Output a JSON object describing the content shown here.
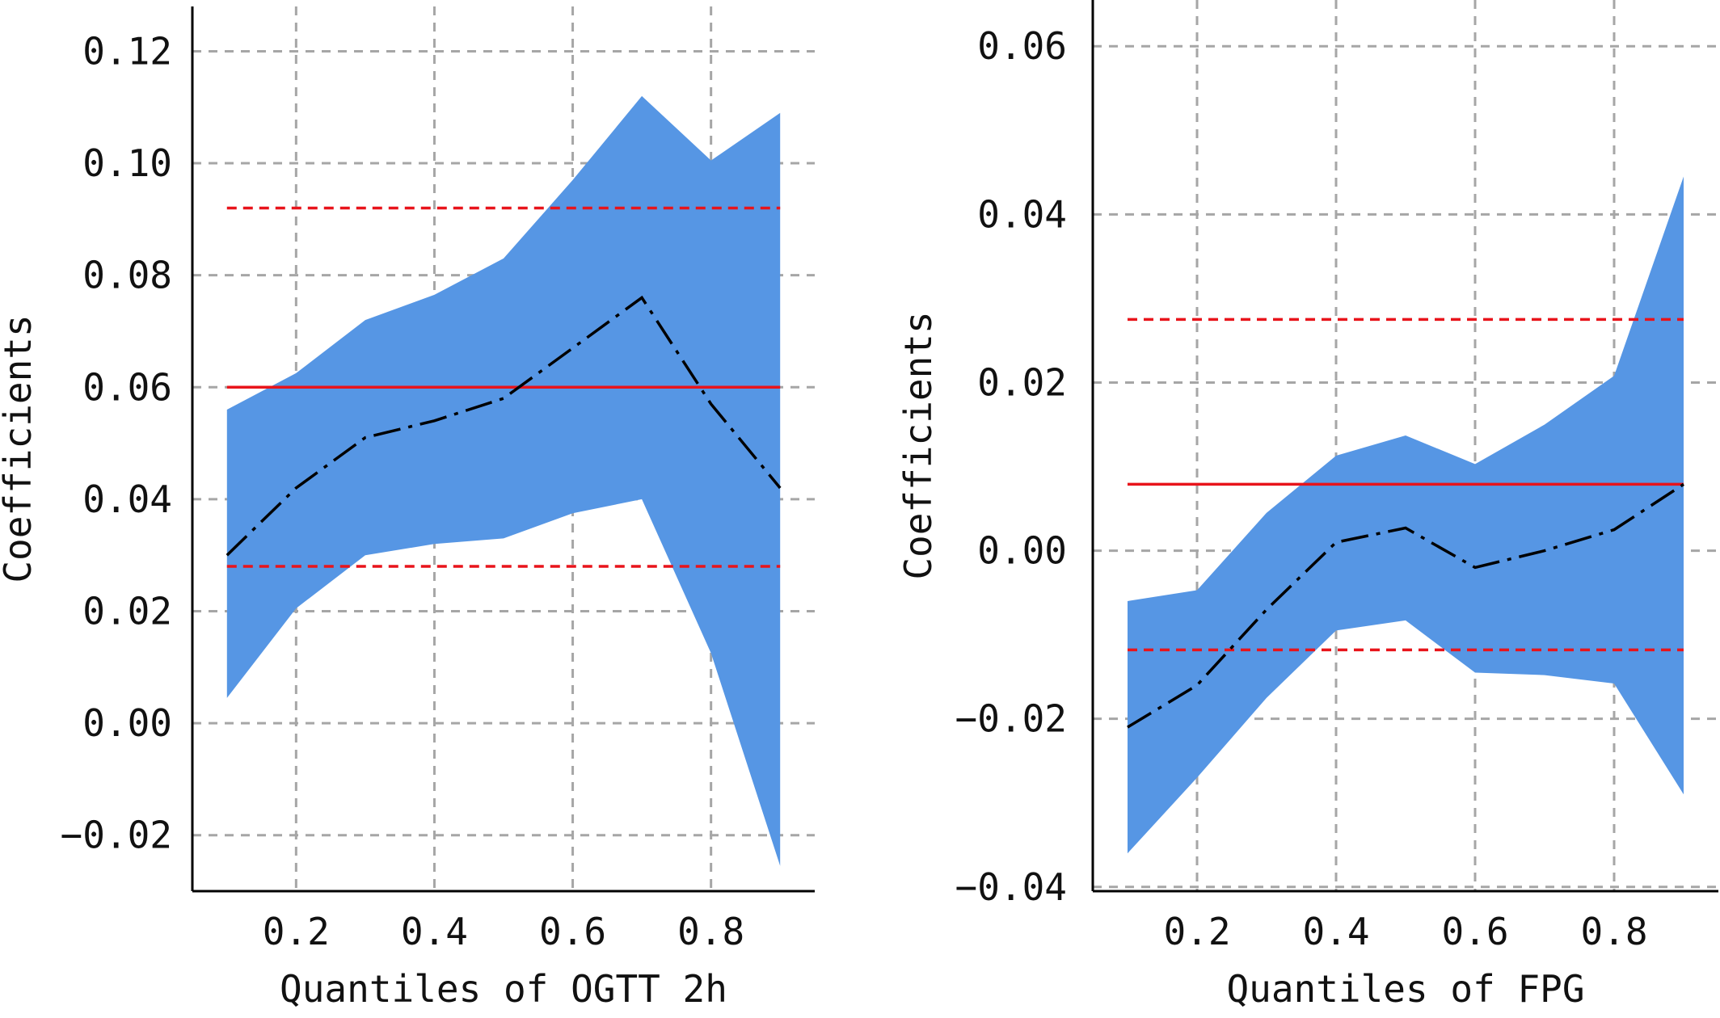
{
  "chart_data": [
    {
      "type": "line",
      "xlabel": "Quantiles of OGTT 2h",
      "ylabel": "Coefficients",
      "xlim": [
        0.05,
        0.95
      ],
      "ylim": [
        -0.03,
        0.128
      ],
      "xticks": [
        0.2,
        0.4,
        0.6,
        0.8
      ],
      "xtick_labels": [
        "0.2",
        "0.4",
        "0.6",
        "0.8"
      ],
      "yticks": [
        -0.02,
        0.0,
        0.02,
        0.04,
        0.06,
        0.08,
        0.1,
        0.12
      ],
      "ytick_labels": [
        "−0.02",
        "0.00",
        "0.02",
        "0.04",
        "0.06",
        "0.08",
        "0.10",
        "0.12"
      ],
      "grid": true,
      "quantiles": [
        0.1,
        0.2,
        0.3,
        0.4,
        0.5,
        0.6,
        0.7,
        0.8,
        0.9
      ],
      "qr_coef": [
        0.03,
        0.042,
        0.051,
        0.054,
        0.058,
        0.067,
        0.076,
        0.057,
        0.042
      ],
      "qr_ci_lower": [
        0.0045,
        0.0205,
        0.03,
        0.032,
        0.033,
        0.0375,
        0.04,
        0.0125,
        -0.0255
      ],
      "qr_ci_upper": [
        0.056,
        0.0625,
        0.072,
        0.0765,
        0.083,
        0.097,
        0.112,
        0.1005,
        0.109
      ],
      "ols_coef": 0.06,
      "ols_ci": [
        0.028,
        0.092
      ],
      "colors": {
        "band": "#5696e4",
        "coef_line": "#000000",
        "ols": "#e8141b",
        "grid": "#a6a6a6"
      }
    },
    {
      "type": "line",
      "xlabel": "Quantiles of FPG",
      "ylabel": "Coefficients",
      "xlim": [
        0.05,
        0.95
      ],
      "ylim": [
        -0.0405,
        0.0655
      ],
      "xticks": [
        0.2,
        0.4,
        0.6,
        0.8
      ],
      "xtick_labels": [
        "0.2",
        "0.4",
        "0.6",
        "0.8"
      ],
      "yticks": [
        -0.04,
        -0.02,
        0.0,
        0.02,
        0.04,
        0.06
      ],
      "ytick_labels": [
        "−0.04",
        "−0.02",
        "0.00",
        "0.02",
        "0.04",
        "0.06"
      ],
      "grid": true,
      "quantiles": [
        0.1,
        0.2,
        0.3,
        0.4,
        0.5,
        0.6,
        0.7,
        0.8,
        0.9
      ],
      "qr_coef": [
        -0.021,
        -0.016,
        -0.007,
        0.001,
        0.0027,
        -0.002,
        0.0,
        0.0025,
        0.0079
      ],
      "qr_ci_lower": [
        -0.036,
        -0.027,
        -0.0175,
        -0.0095,
        -0.0083,
        -0.0145,
        -0.0148,
        -0.0158,
        -0.029
      ],
      "qr_ci_upper": [
        -0.006,
        -0.0047,
        0.0045,
        0.0113,
        0.0137,
        0.0103,
        0.015,
        0.0208,
        0.0445
      ],
      "ols_coef": 0.0079,
      "ols_ci": [
        -0.0118,
        0.0275
      ],
      "colors": {
        "band": "#5696e4",
        "coef_line": "#000000",
        "ols": "#e8141b",
        "grid": "#a6a6a6"
      }
    }
  ]
}
